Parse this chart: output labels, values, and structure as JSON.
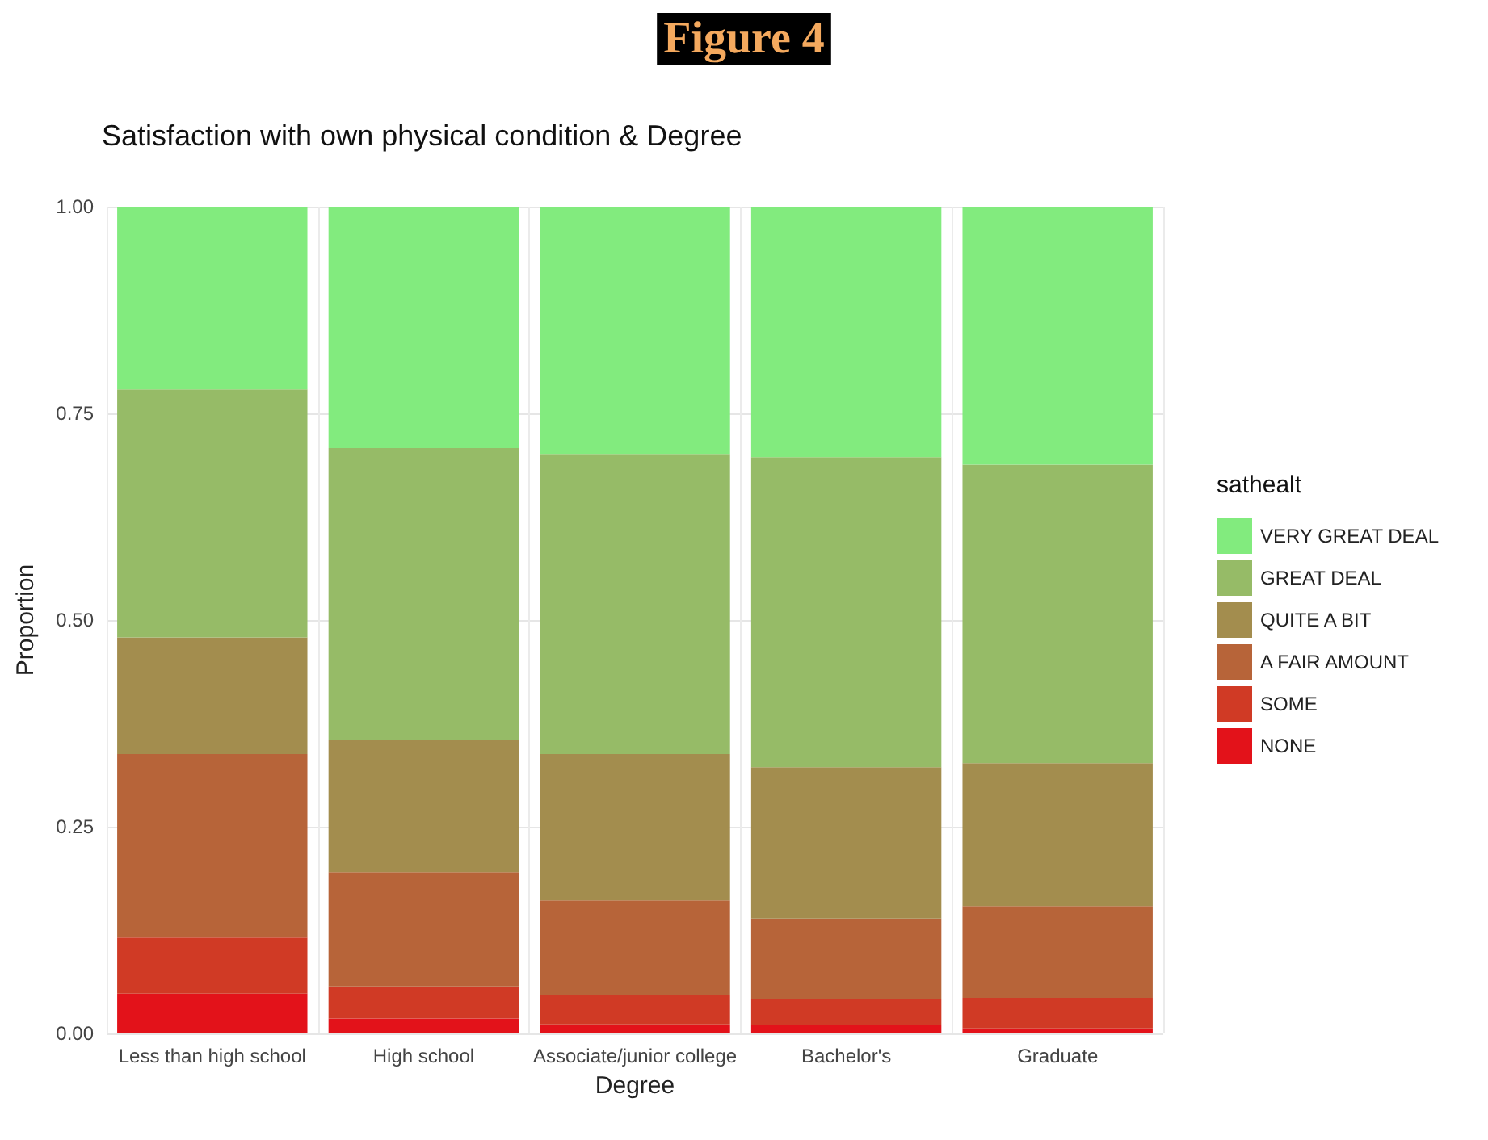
{
  "chart_data": {
    "type": "bar",
    "title": "Figure 4",
    "subtitle": "Satisfaction with own physical condition & Degree",
    "xlabel": "Degree",
    "ylabel": "Proportion",
    "legend_title": "sathealt",
    "categories": [
      "Less than high school",
      "High school",
      "Associate/junior college",
      "Bachelor's",
      "Graduate"
    ],
    "stacked": true,
    "ylim": [
      0,
      1
    ],
    "yticks": [
      {
        "value": 0,
        "label": "0.00"
      },
      {
        "value": 0.25,
        "label": "0.25"
      },
      {
        "value": 0.5,
        "label": "0.50"
      },
      {
        "value": 0.75,
        "label": "0.75"
      },
      {
        "value": 1,
        "label": "1.00"
      }
    ],
    "grid": true,
    "legend": "right",
    "series": [
      {
        "name": "NONE",
        "color": "#e3121a",
        "values": [
          0.048,
          0.018,
          0.011,
          0.01,
          0.006
        ]
      },
      {
        "name": "SOME",
        "color": "#d03a25",
        "values": [
          0.068,
          0.039,
          0.035,
          0.032,
          0.037
        ]
      },
      {
        "name": "A FAIR AMOUNT",
        "color": "#b76439",
        "values": [
          0.222,
          0.138,
          0.115,
          0.097,
          0.111
        ]
      },
      {
        "name": "QUITE A BIT",
        "color": "#a38d4e",
        "values": [
          0.141,
          0.16,
          0.177,
          0.183,
          0.173
        ]
      },
      {
        "name": "GREAT DEAL",
        "color": "#96bb67",
        "values": [
          0.3,
          0.353,
          0.363,
          0.375,
          0.361
        ]
      },
      {
        "name": "VERY GREAT DEAL",
        "color": "#82eb7e",
        "values": [
          0.221,
          0.292,
          0.299,
          0.303,
          0.312
        ]
      }
    ]
  }
}
